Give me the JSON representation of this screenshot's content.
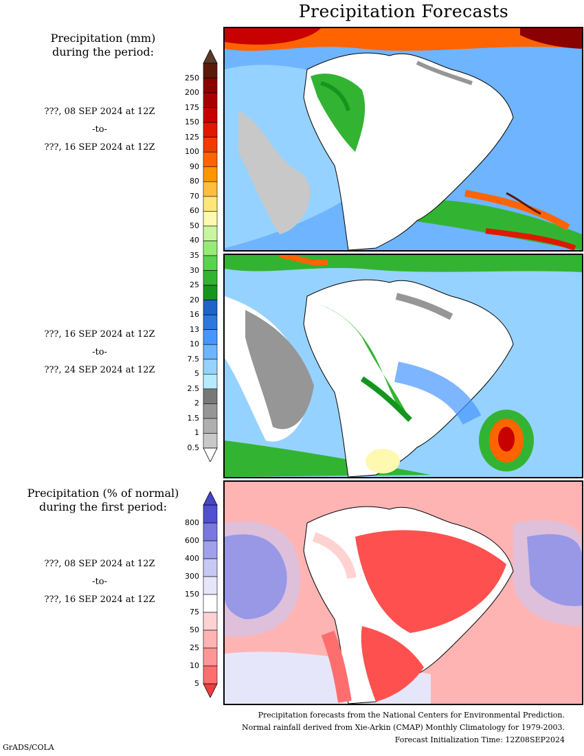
{
  "title": "Precipitation Forecasts",
  "side_headings": {
    "precip_line1": "Precipitation (mm)",
    "precip_line2": "during the period:",
    "anom_line1": "Precipitation (% of normal)",
    "anom_line2": "during the first period:"
  },
  "periods": [
    {
      "start": "???, 08 SEP 2024 at 12Z",
      "sep": "-to-",
      "end": "???, 16 SEP 2024 at 12Z"
    },
    {
      "start": "???, 16 SEP 2024 at 12Z",
      "sep": "-to-",
      "end": "???, 24 SEP 2024 at 12Z"
    },
    {
      "start": "???, 08 SEP 2024 at 12Z",
      "sep": "-to-",
      "end": "???, 16 SEP 2024 at 12Z"
    }
  ],
  "precip_colorbar": {
    "labels": [
      "250",
      "200",
      "175",
      "150",
      "125",
      "100",
      "90",
      "80",
      "70",
      "60",
      "50",
      "40",
      "35",
      "30",
      "25",
      "20",
      "16",
      "13",
      "10",
      "7.5",
      "5",
      "2.5",
      "2",
      "1.5",
      "1",
      "0.5"
    ],
    "colors": [
      "#5a1a0a",
      "#8b0000",
      "#a80000",
      "#c80000",
      "#e01800",
      "#f03c00",
      "#ff6400",
      "#ff9600",
      "#ffbe3c",
      "#ffe678",
      "#fff8b0",
      "#c8f5a0",
      "#96eb78",
      "#5ad250",
      "#32b432",
      "#14961e",
      "#1e64c8",
      "#2d78dc",
      "#4696ff",
      "#6eb4ff",
      "#96d2ff",
      "#b4ebff",
      "#787878",
      "#969696",
      "#afafaf",
      "#c8c8c8"
    ],
    "top_arrow_color": "#5a3a2a",
    "bottom_arrow_color": "#ffffff"
  },
  "anom_colorbar": {
    "labels": [
      "800",
      "600",
      "400",
      "300",
      "150",
      "75",
      "50",
      "25",
      "10",
      "5"
    ],
    "colors": [
      "#5050d2",
      "#7878e0",
      "#a0a0eb",
      "#c8c8f5",
      "#e6e6fa",
      "#ffffff",
      "#ffd2d2",
      "#ffb4b4",
      "#ff9696",
      "#ff6e6e"
    ],
    "top_arrow_color": "#4646c8",
    "bottom_arrow_color": "#f03c3c"
  },
  "footer": {
    "line1": "Precipitation forecasts from the National Centers for Environmental Prediction.",
    "line2": "Normal rainfall derived from Xie-Arkin (CMAP) Monthly Climatology for 1979-2003.",
    "line3": "Forecast Initialization Time: 12Z08SEP2024"
  },
  "credit": "GrADS/COLA",
  "colors": {
    "ocean_blue": "#96d2ff",
    "land_white": "#ffffff",
    "dry_gray": "#969696",
    "wet_green": "#32b432",
    "above_normal_blue": "#5050d2",
    "below_normal_red": "#ff5050"
  }
}
